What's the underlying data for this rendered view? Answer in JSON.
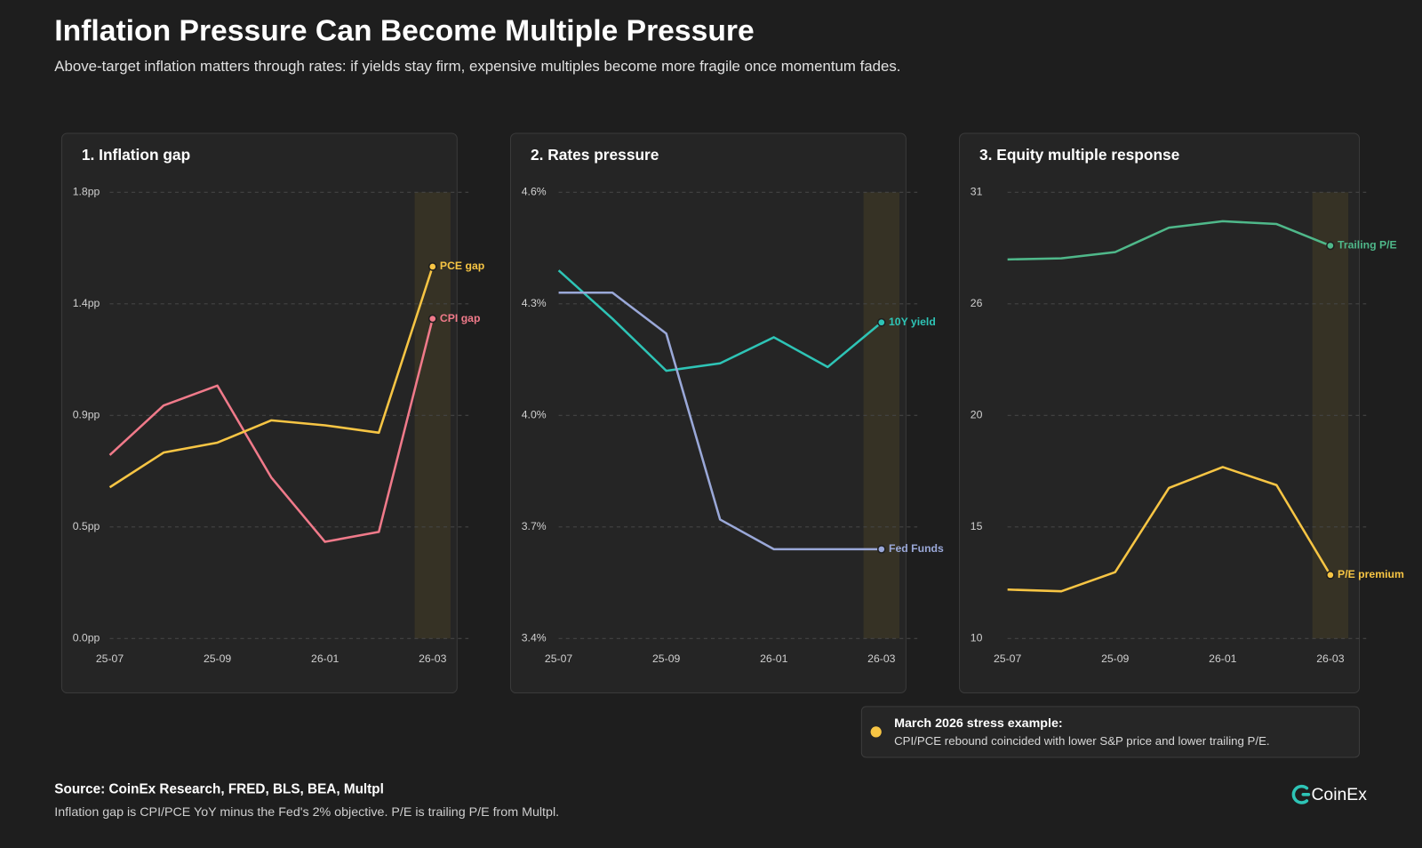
{
  "title": "Inflation Pressure Can Become Multiple Pressure",
  "subtitle": "Above-target inflation matters through rates: if yields stay firm, expensive multiples become more fragile once momentum fades.",
  "annotation": {
    "title": "March 2026 stress example:",
    "text": "CPI/PCE rebound coincided with lower S&P price and lower trailing P/E."
  },
  "source": "Source: CoinEx Research, FRED, BLS, BEA, Multpl",
  "note": "Inflation gap is CPI/PCE YoY minus the Fed's 2% objective. P/E is trailing P/E from Multpl.",
  "logo": "CoinEx",
  "chart_data": [
    {
      "type": "line",
      "title": "1. Inflation gap",
      "categories": [
        "25-07",
        null,
        "25-09",
        null,
        "26-01",
        null,
        "26-03"
      ],
      "series": [
        {
          "name": "CPI gap",
          "color": "#f07a8a",
          "values": [
            0.74,
            0.94,
            1.02,
            0.65,
            0.39,
            0.43,
            1.29
          ]
        },
        {
          "name": "PCE gap",
          "color": "#f7c544",
          "values": [
            0.61,
            0.75,
            0.79,
            0.88,
            0.86,
            0.83,
            1.5
          ]
        }
      ],
      "ylim": [
        0,
        1.8
      ],
      "yticks": [
        {
          "value": 0,
          "label": "0.0pp"
        },
        {
          "value": 0.45,
          "label": "0.5pp"
        },
        {
          "value": 0.9,
          "label": "0.9pp"
        },
        {
          "value": 1.35,
          "label": "1.4pp"
        },
        {
          "value": 1.8,
          "label": "1.8pp"
        }
      ],
      "grid": true
    },
    {
      "type": "line",
      "title": "2. Rates pressure",
      "categories": [
        "25-07",
        null,
        "25-09",
        null,
        "26-01",
        null,
        "26-03"
      ],
      "series": [
        {
          "name": "10Y yield",
          "color": "#2ec4b6",
          "values": [
            4.39,
            4.26,
            4.12,
            4.14,
            4.21,
            4.13,
            4.25
          ]
        },
        {
          "name": "Fed Funds",
          "color": "#9aa8d8",
          "values": [
            4.33,
            4.33,
            4.22,
            3.72,
            3.64,
            3.64,
            3.64
          ]
        }
      ],
      "ylim": [
        3.4,
        4.6
      ],
      "yticks": [
        {
          "value": 3.4,
          "label": "3.4%"
        },
        {
          "value": 3.7,
          "label": "3.7%"
        },
        {
          "value": 4.0,
          "label": "4.0%"
        },
        {
          "value": 4.3,
          "label": "4.3%"
        },
        {
          "value": 4.6,
          "label": "4.6%"
        }
      ],
      "grid": true
    },
    {
      "type": "line",
      "title": "3. Equity multiple response",
      "categories": [
        "25-07",
        null,
        "25-09",
        null,
        "26-01",
        null,
        "26-03"
      ],
      "series": [
        {
          "name": "Trailing P/E",
          "color": "#4fb88a",
          "values": [
            27.67,
            27.72,
            28.01,
            29.15,
            29.45,
            29.32,
            28.31
          ]
        },
        {
          "name": "P/E premium",
          "color": "#f7c544",
          "values": [
            12.28,
            12.2,
            13.09,
            17.02,
            17.99,
            17.15,
            12.96
          ]
        }
      ],
      "ylim": [
        10,
        30.8
      ],
      "yticks": [
        10,
        {
          "value": 15.2,
          "label": "15"
        },
        {
          "value": 20.4,
          "label": "20"
        },
        {
          "value": 25.6,
          "label": "26"
        },
        {
          "value": 30.8,
          "label": "31"
        }
      ],
      "grid": true
    }
  ]
}
